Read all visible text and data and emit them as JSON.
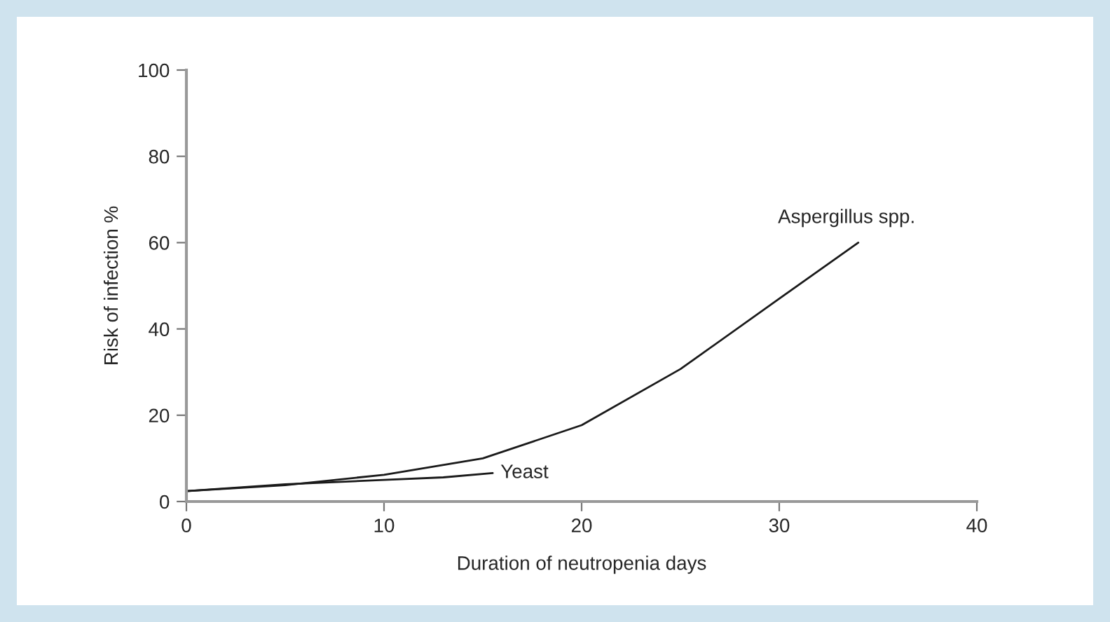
{
  "chart_data": {
    "type": "line",
    "xlabel": "Duration of neutropenia days",
    "ylabel": "Risk of infection %",
    "xlim": [
      0,
      40
    ],
    "ylim": [
      0,
      100
    ],
    "xticks": [
      0,
      10,
      20,
      30,
      40
    ],
    "yticks": [
      0,
      20,
      40,
      60,
      80,
      100
    ],
    "grid": false,
    "legend": false,
    "line_style": "solid",
    "marker": "none",
    "series": [
      {
        "name": "Aspergillus spp.",
        "color": "#1a1a1a",
        "x": [
          0,
          5,
          10,
          15,
          20,
          25,
          30,
          34
        ],
        "values": [
          2.4,
          3.8,
          6.2,
          10,
          17.7,
          30.7,
          47,
          60
        ]
      },
      {
        "name": "Yeast",
        "color": "#1a1a1a",
        "x": [
          0,
          5,
          10,
          13,
          15.5
        ],
        "values": [
          2.4,
          4,
          5,
          5.6,
          6.6
        ]
      }
    ]
  }
}
